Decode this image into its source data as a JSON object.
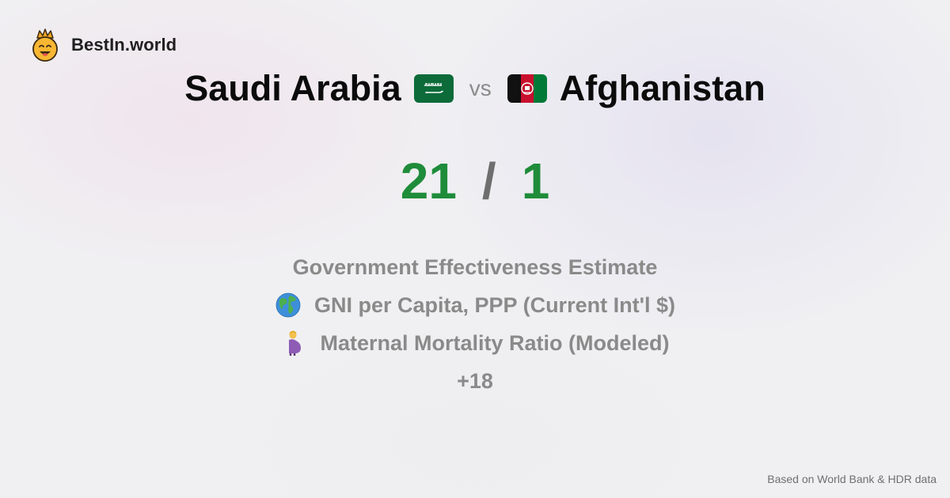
{
  "brand": {
    "name": "BestIn.world",
    "logo_icon": "crowned-smiley-icon"
  },
  "comparison": {
    "country_a": {
      "name": "Saudi Arabia",
      "flag_icon": "saudi-arabia-flag-icon",
      "score": "21"
    },
    "vs_label": "vs",
    "country_b": {
      "name": "Afghanistan",
      "flag_icon": "afghanistan-flag-icon",
      "score": "1"
    },
    "separator": "/"
  },
  "metrics": [
    {
      "label": "Government Effectiveness Estimate",
      "icon": ""
    },
    {
      "label": "GNI per Capita, PPP (Current Int'l $)",
      "icon": "globe-icon"
    },
    {
      "label": "Maternal Mortality Ratio (Modeled)",
      "icon": "pregnant-woman-icon"
    }
  ],
  "more_label": "+18",
  "footer": {
    "source": "Based on World Bank & HDR data"
  },
  "colors": {
    "score": "#1f8c3a",
    "muted_text": "#8a8a8a",
    "title_text": "#0b0b0b"
  }
}
